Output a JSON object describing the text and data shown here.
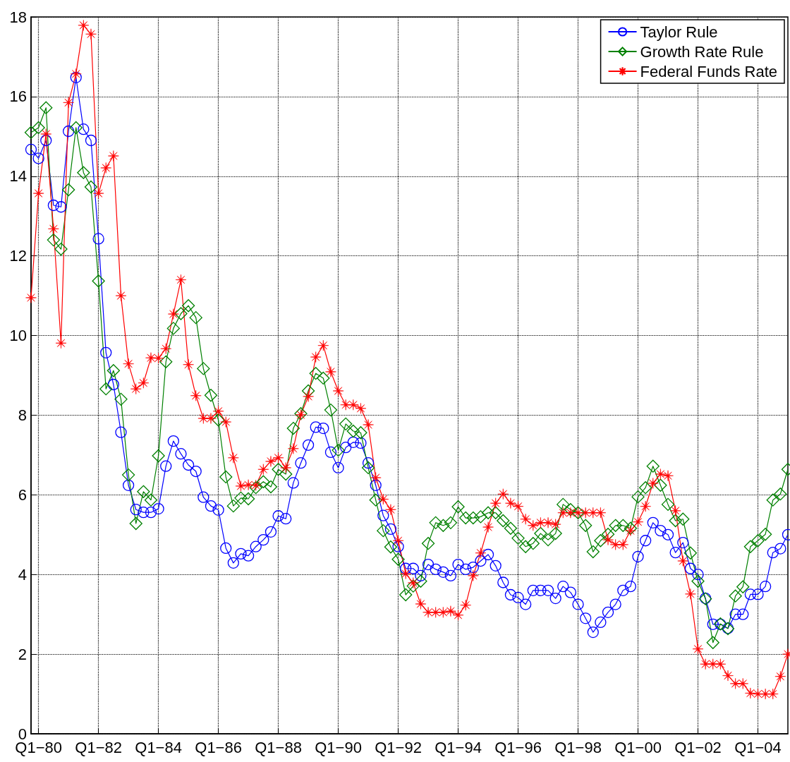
{
  "chart_data": {
    "type": "line",
    "categories": [
      null,
      "Q1−80",
      null,
      null,
      null,
      null,
      null,
      null,
      null,
      "Q1−82",
      null,
      null,
      null,
      null,
      null,
      null,
      null,
      "Q1−84",
      null,
      null,
      null,
      null,
      null,
      null,
      null,
      "Q1−86",
      null,
      null,
      null,
      null,
      null,
      null,
      null,
      "Q1−88",
      null,
      null,
      null,
      null,
      null,
      null,
      null,
      "Q1−90",
      null,
      null,
      null,
      null,
      null,
      null,
      null,
      "Q1−92",
      null,
      null,
      null,
      null,
      null,
      null,
      null,
      "Q1−94",
      null,
      null,
      null,
      null,
      null,
      null,
      null,
      "Q1−96",
      null,
      null,
      null,
      null,
      null,
      null,
      null,
      "Q1−98",
      null,
      null,
      null,
      null,
      null,
      null,
      null,
      "Q1−00",
      null,
      null,
      null,
      null,
      null,
      null,
      null,
      "Q1−02",
      null,
      null,
      null,
      null,
      null,
      null,
      null,
      "Q1−04",
      null,
      null,
      null,
      null
    ],
    "series": [
      {
        "name": "Taylor Rule",
        "color": "#0000ff",
        "marker": "circle",
        "values": [
          14.67,
          14.45,
          14.9,
          13.27,
          13.23,
          15.13,
          16.48,
          15.18,
          14.9,
          12.43,
          9.57,
          8.77,
          7.57,
          6.24,
          5.63,
          5.56,
          5.56,
          5.65,
          6.72,
          7.35,
          7.03,
          6.75,
          6.59,
          5.94,
          5.72,
          5.62,
          4.66,
          4.29,
          4.52,
          4.47,
          4.7,
          4.87,
          5.07,
          5.47,
          5.4,
          6.3,
          6.8,
          7.25,
          7.7,
          7.67,
          7.07,
          6.68,
          7.19,
          7.32,
          7.3,
          6.8,
          6.24,
          5.48,
          5.14,
          4.7,
          4.15,
          4.15,
          3.97,
          4.25,
          4.13,
          4.06,
          3.97,
          4.25,
          4.13,
          4.18,
          4.34,
          4.5,
          4.22,
          3.8,
          3.49,
          3.42,
          3.25,
          3.6,
          3.6,
          3.6,
          3.4,
          3.7,
          3.55,
          3.25,
          2.9,
          2.55,
          2.8,
          3.05,
          3.25,
          3.6,
          3.7,
          4.45,
          4.85,
          5.3,
          5.1,
          5.0,
          4.55,
          4.8,
          4.15,
          4.0,
          3.4,
          2.75,
          2.75,
          2.65,
          3.0,
          3.0,
          3.5,
          3.5,
          3.7,
          4.55,
          4.65,
          5.0
        ]
      },
      {
        "name": "Growth Rate Rule",
        "color": "#008000",
        "marker": "diamond",
        "values": [
          15.1,
          15.22,
          15.72,
          12.4,
          12.17,
          13.66,
          15.22,
          14.09,
          13.73,
          11.37,
          8.66,
          9.12,
          8.4,
          6.5,
          5.28,
          6.08,
          5.87,
          6.98,
          9.34,
          10.18,
          10.55,
          10.75,
          10.45,
          9.17,
          8.5,
          7.88,
          6.45,
          5.72,
          5.92,
          5.9,
          6.18,
          6.33,
          6.2,
          6.64,
          6.52,
          7.67,
          8.04,
          8.61,
          9.05,
          8.93,
          8.13,
          7.12,
          7.78,
          7.6,
          7.56,
          6.68,
          5.87,
          5.1,
          4.69,
          4.38,
          3.49,
          3.71,
          3.83,
          4.78,
          5.3,
          5.23,
          5.3,
          5.7,
          5.42,
          5.42,
          5.45,
          5.55,
          5.55,
          5.35,
          5.16,
          4.91,
          4.7,
          4.78,
          5.03,
          4.87,
          5.03,
          5.76,
          5.63,
          5.55,
          5.23,
          4.57,
          4.85,
          5.01,
          5.23,
          5.23,
          5.16,
          5.95,
          6.18,
          6.72,
          6.24,
          5.76,
          5.35,
          5.39,
          4.54,
          3.83,
          3.39,
          2.29,
          2.76,
          2.64,
          3.46,
          3.69,
          4.7,
          4.85,
          5.01,
          5.87,
          6.02,
          6.64
        ]
      },
      {
        "name": "Federal Funds Rate",
        "color": "#ff0000",
        "marker": "star",
        "values": [
          10.95,
          13.57,
          15.06,
          12.68,
          9.81,
          15.85,
          16.57,
          17.79,
          17.57,
          13.57,
          14.21,
          14.51,
          11.0,
          9.29,
          8.66,
          8.81,
          9.44,
          9.43,
          9.67,
          10.54,
          11.4,
          9.27,
          8.49,
          7.92,
          7.92,
          8.1,
          7.83,
          6.93,
          6.22,
          6.25,
          6.24,
          6.64,
          6.84,
          6.93,
          6.68,
          7.16,
          8.01,
          8.47,
          9.46,
          9.75,
          9.09,
          8.61,
          8.26,
          8.26,
          8.17,
          7.76,
          6.43,
          5.89,
          5.63,
          4.85,
          4.02,
          3.79,
          3.26,
          3.05,
          3.05,
          3.05,
          3.08,
          2.98,
          3.23,
          3.97,
          4.54,
          5.19,
          5.79,
          6.02,
          5.79,
          5.71,
          5.39,
          5.23,
          5.3,
          5.3,
          5.26,
          5.55,
          5.55,
          5.55,
          5.55,
          5.55,
          5.55,
          4.87,
          4.75,
          4.75,
          5.1,
          5.32,
          5.71,
          6.29,
          6.52,
          6.48,
          5.6,
          4.34,
          3.51,
          2.13,
          1.75,
          1.75,
          1.75,
          1.46,
          1.26,
          1.26,
          1.02,
          1.0,
          1.0,
          1.0,
          1.44,
          2.0
        ]
      }
    ],
    "ylim": [
      0,
      18
    ],
    "yticks": [
      0,
      2,
      4,
      6,
      8,
      10,
      12,
      14,
      16,
      18
    ],
    "grid": true,
    "legend": "top right",
    "line_style": "solid"
  }
}
